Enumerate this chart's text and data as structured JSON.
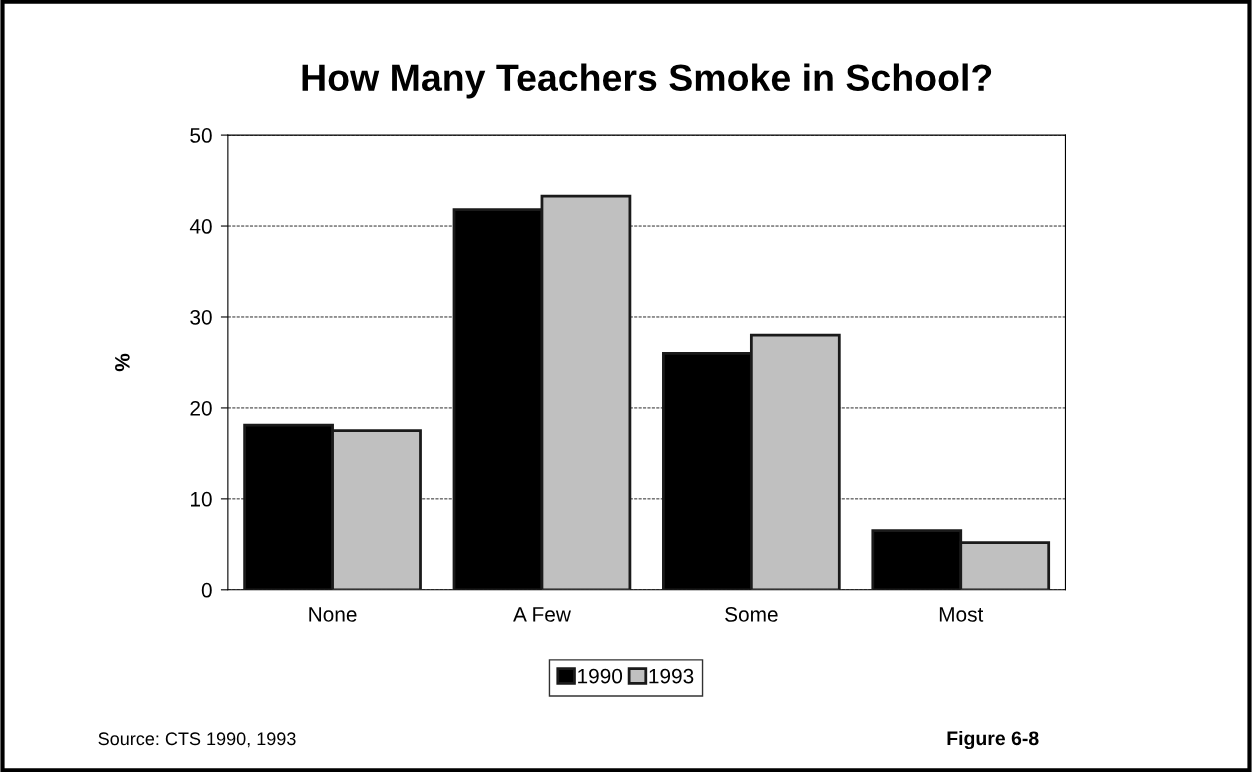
{
  "chart_data": {
    "type": "bar",
    "title": "How Many Teachers Smoke in School?",
    "ylabel": "%",
    "categories": [
      "None",
      "A Few",
      "Some",
      "Most"
    ],
    "series": [
      {
        "name": "1990",
        "color": "#000000",
        "values": [
          18.1,
          41.8,
          26.0,
          6.5
        ]
      },
      {
        "name": "1993",
        "color": "#c0c0c0",
        "values": [
          17.5,
          43.3,
          28.0,
          5.2
        ]
      }
    ],
    "ylim": [
      0,
      50
    ],
    "yticks": [
      0,
      10,
      20,
      30,
      40,
      50
    ],
    "grid": "y",
    "legend": "bottom",
    "annotations": [
      "Source: CTS 1990, 1993",
      "Figure 6-8"
    ]
  }
}
